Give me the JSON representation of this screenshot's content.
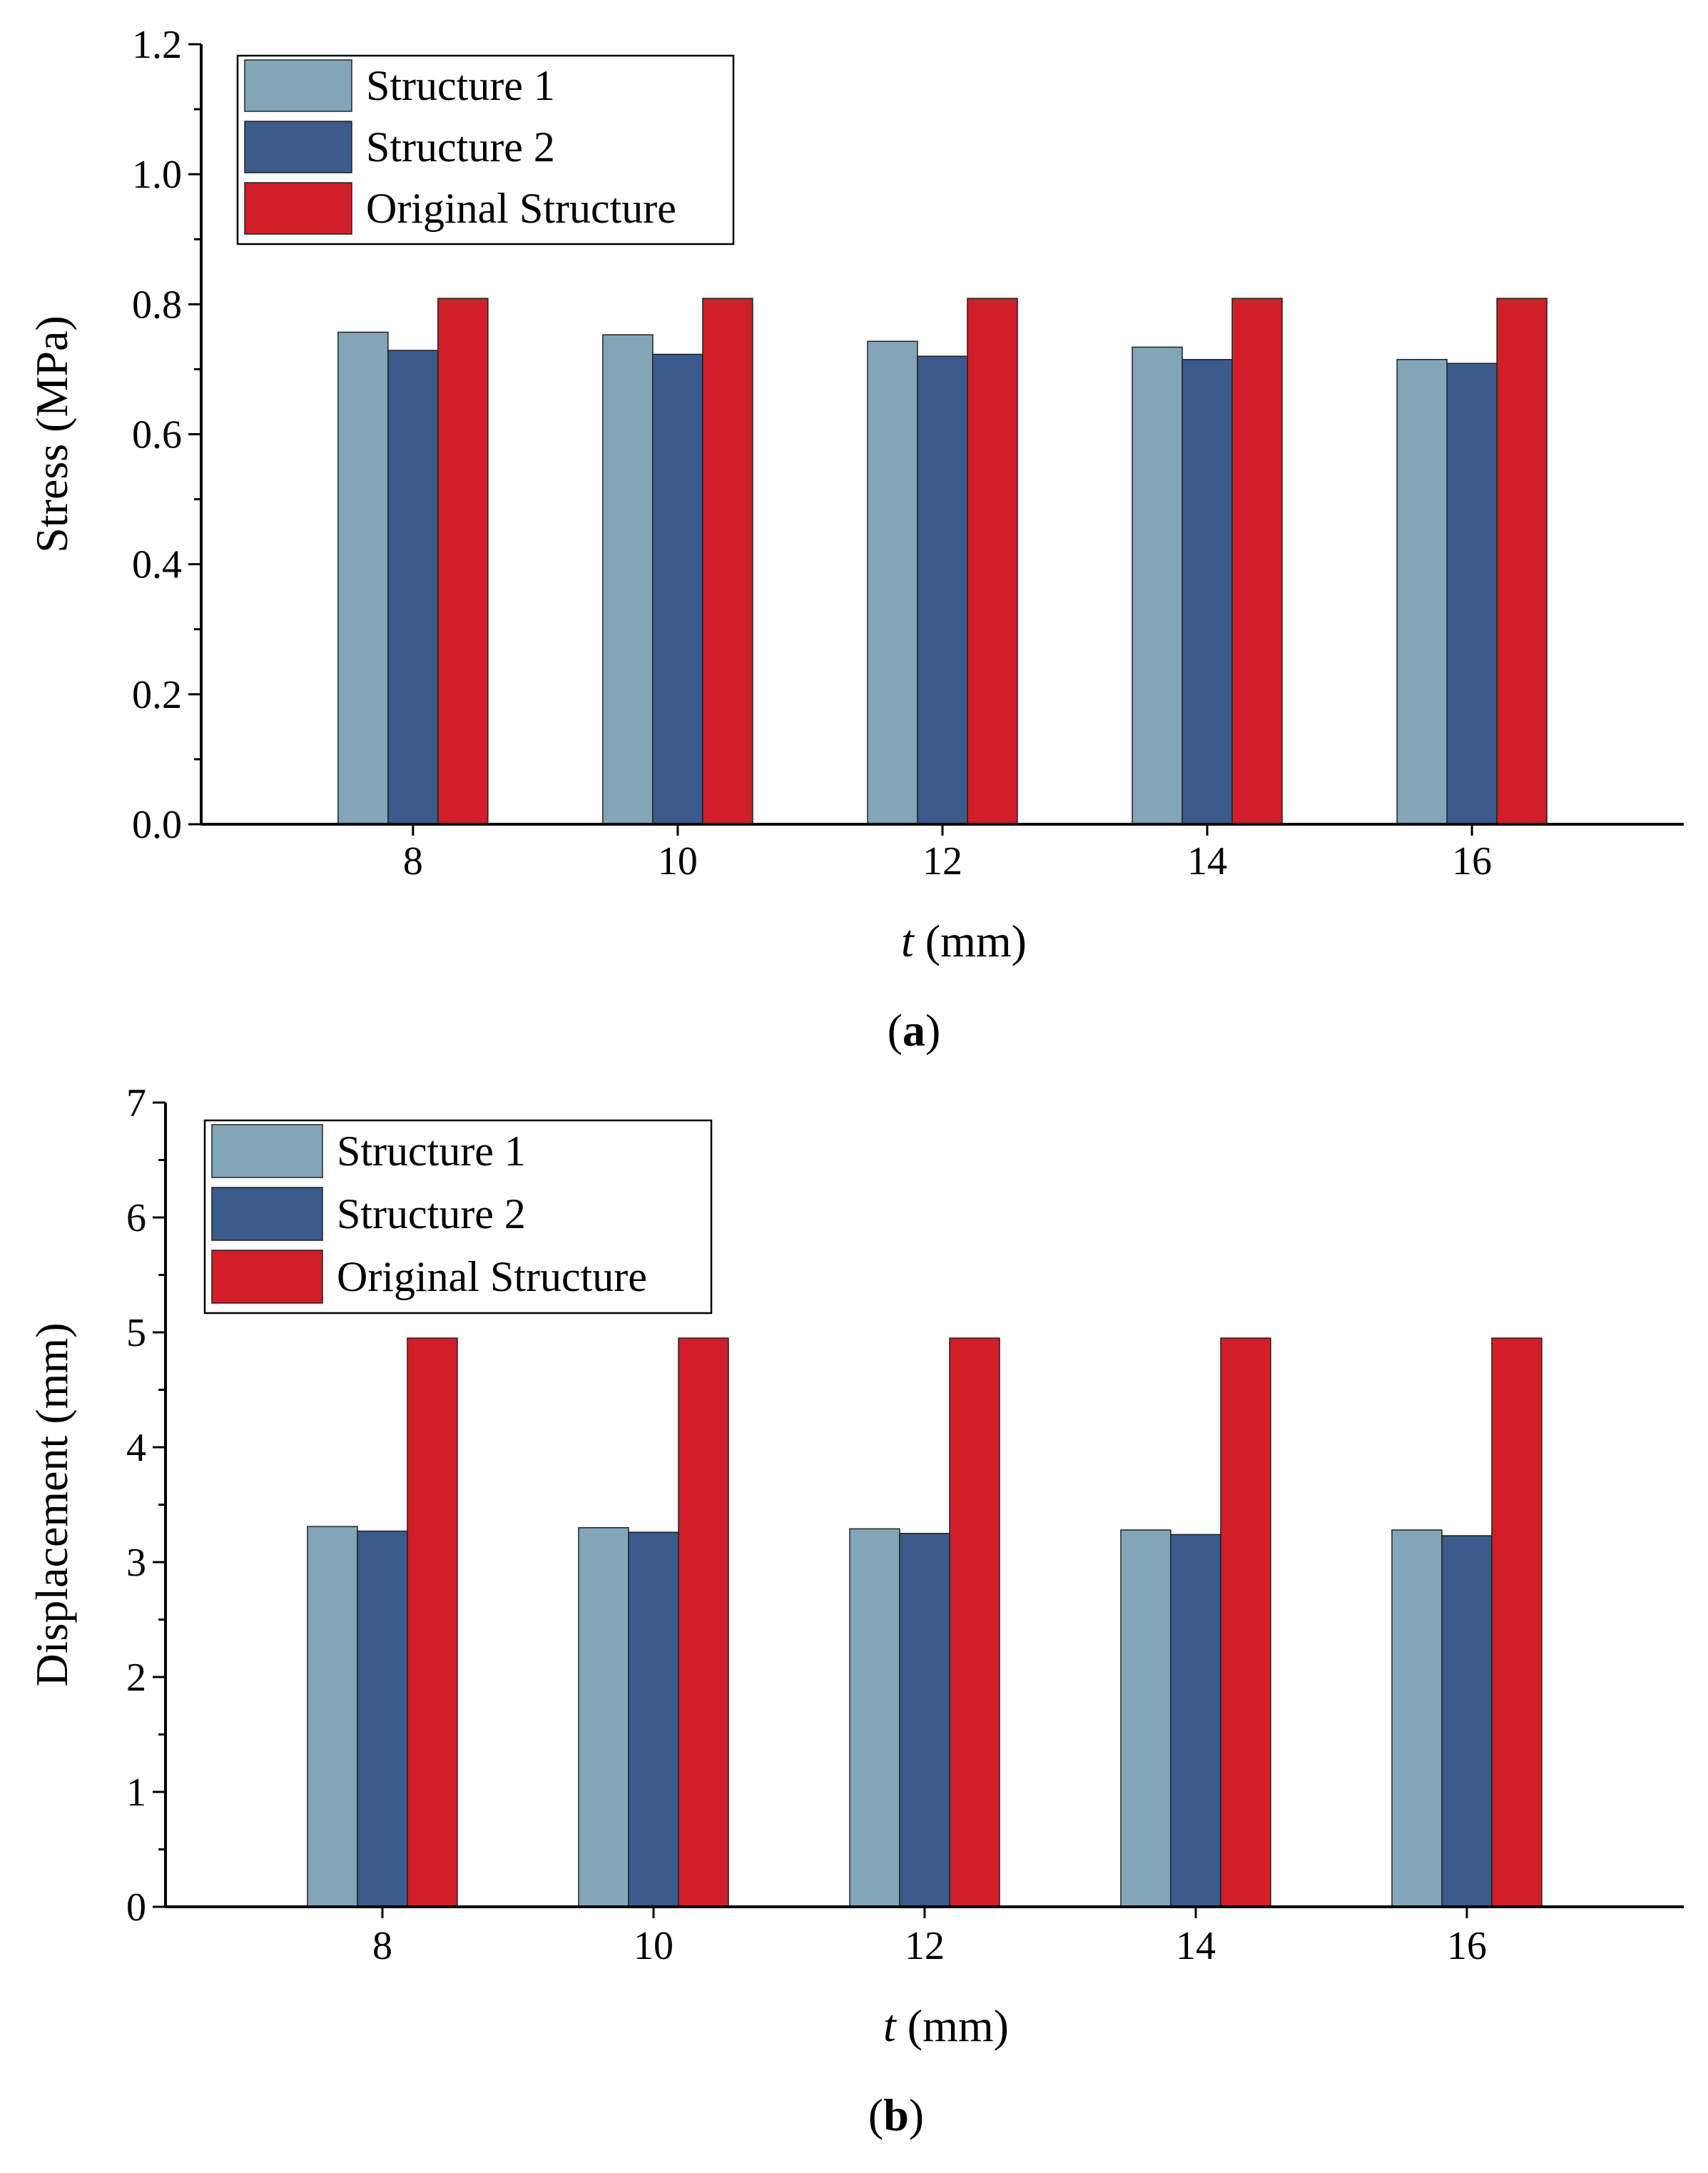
{
  "chart_data": [
    {
      "type": "bar",
      "title": "",
      "categories": [
        "8",
        "10",
        "12",
        "14",
        "16"
      ],
      "series": [
        {
          "name": "Structure 1",
          "color": "#82a6b8",
          "values": [
            0.757,
            0.753,
            0.743,
            0.734,
            0.715
          ]
        },
        {
          "name": "Structure 2",
          "color": "#3a5b8c",
          "values": [
            0.729,
            0.723,
            0.72,
            0.715,
            0.709
          ]
        },
        {
          "name": "Original Structure",
          "color": "#d01f28",
          "values": [
            0.809,
            0.809,
            0.809,
            0.809,
            0.809
          ]
        }
      ],
      "xlabel_italic": "t",
      "xlabel_rest": " (mm)",
      "ylabel": "Stress (MPa)",
      "ylim": [
        0,
        1.2
      ],
      "yticks": [
        "0.0",
        "0.2",
        "0.4",
        "0.6",
        "0.8",
        "1.0",
        "1.2"
      ],
      "grid": false,
      "legend_position": "top-left",
      "caption_open": "(",
      "caption_letter": "a",
      "caption_close": ")"
    },
    {
      "type": "bar",
      "title": "",
      "categories": [
        "8",
        "10",
        "12",
        "14",
        "16"
      ],
      "series": [
        {
          "name": "Structure 1",
          "color": "#82a6b8",
          "values": [
            3.31,
            3.3,
            3.29,
            3.28,
            3.28
          ]
        },
        {
          "name": "Structure 2",
          "color": "#3a5b8c",
          "values": [
            3.27,
            3.26,
            3.25,
            3.24,
            3.23
          ]
        },
        {
          "name": "Original Structure",
          "color": "#d01f28",
          "values": [
            4.95,
            4.95,
            4.95,
            4.95,
            4.95
          ]
        }
      ],
      "xlabel_italic": "t",
      "xlabel_rest": " (mm)",
      "ylabel": "Displacement (mm)",
      "ylim": [
        0,
        7
      ],
      "yticks": [
        "0",
        "1",
        "2",
        "3",
        "4",
        "5",
        "6",
        "7"
      ],
      "grid": false,
      "legend_position": "top-left",
      "caption_open": "(",
      "caption_letter": "b",
      "caption_close": ")"
    }
  ]
}
